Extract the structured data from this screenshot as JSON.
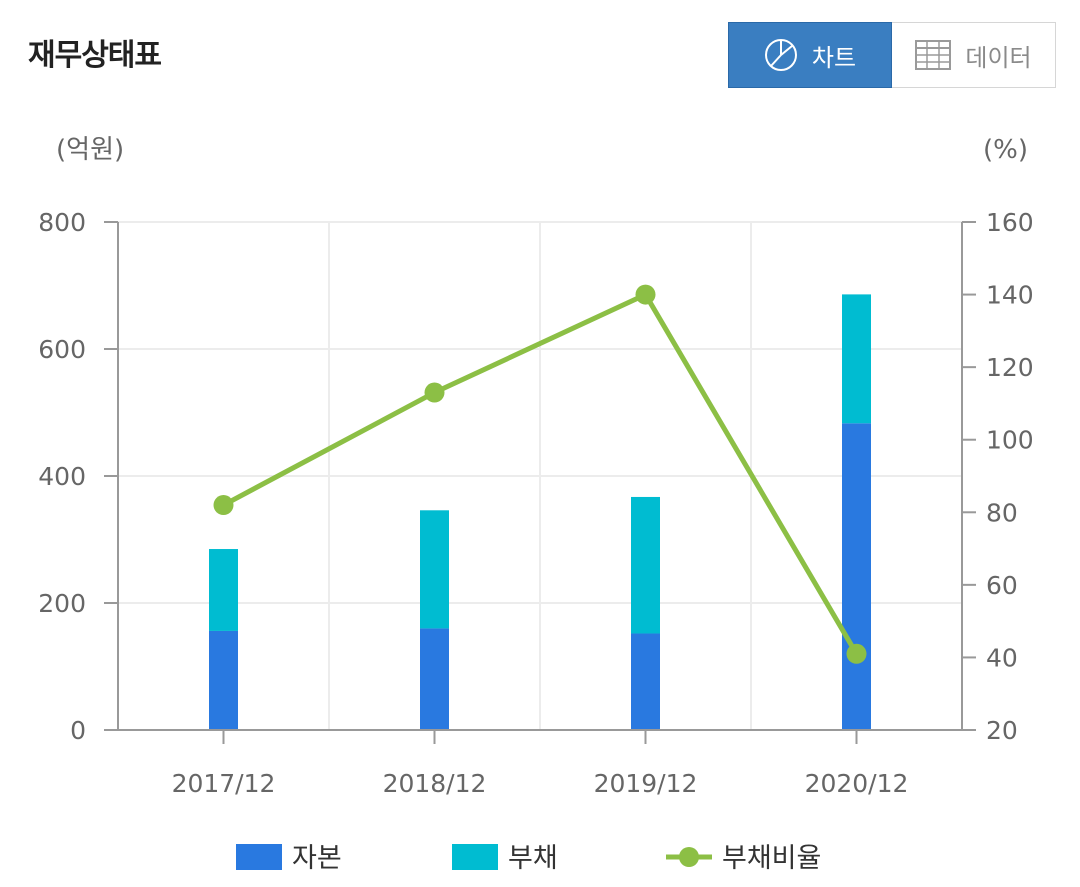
{
  "header": {
    "title": "재무상태표",
    "chart_button_label": "차트",
    "data_button_label": "데이터"
  },
  "colors": {
    "capital": "#2979e0",
    "liabilities": "#00bcd1",
    "ratio_line": "#8cbf45",
    "toggle_active": "#3a7ec1"
  },
  "chart_data": {
    "type": "bar",
    "stacked": true,
    "categories": [
      "2017/12",
      "2018/12",
      "2019/12",
      "2020/12"
    ],
    "series": [
      {
        "name": "자본",
        "type": "bar",
        "axis": "left",
        "values": [
          156,
          160,
          152,
          483
        ]
      },
      {
        "name": "부채",
        "type": "bar",
        "axis": "left",
        "values": [
          129,
          186,
          215,
          203
        ]
      },
      {
        "name": "부채비율",
        "type": "line",
        "axis": "right",
        "values": [
          82,
          113,
          140,
          41
        ]
      }
    ],
    "left_axis": {
      "unit_label": "(억원)",
      "ylim": [
        0,
        800
      ],
      "ticks": [
        "0",
        "200",
        "400",
        "600",
        "800"
      ]
    },
    "right_axis": {
      "unit_label": "(%)",
      "ylim": [
        20,
        160
      ],
      "ticks": [
        "20",
        "40",
        "60",
        "80",
        "100",
        "120",
        "140",
        "160"
      ]
    },
    "grid": true,
    "legend_position": "bottom"
  }
}
